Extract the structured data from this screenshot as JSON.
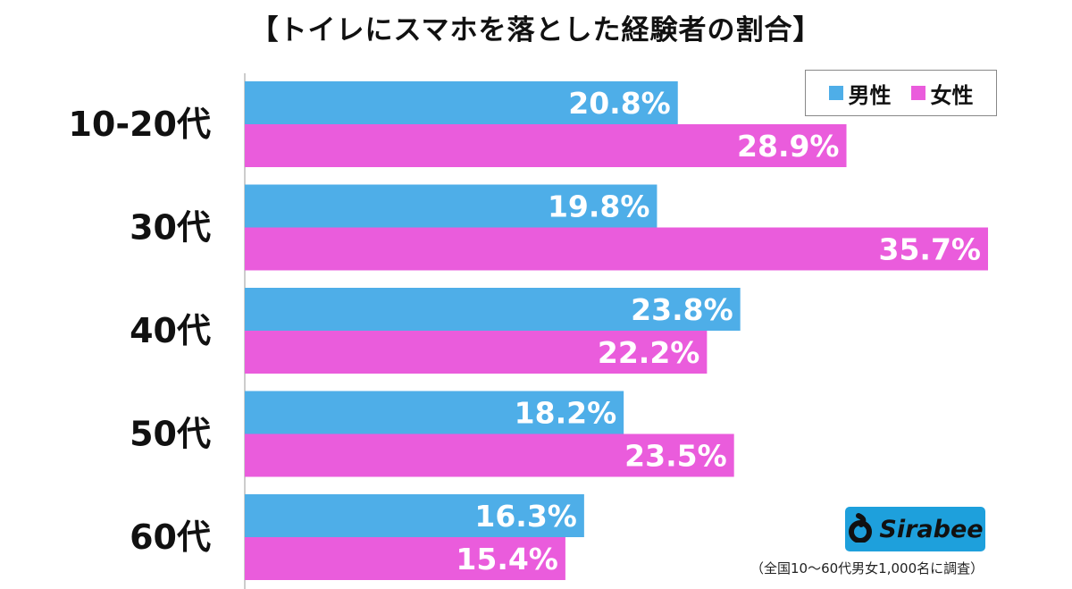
{
  "title": "【トイレにスマホを落とした経験者の割合】",
  "chart_data": {
    "type": "bar",
    "orientation": "horizontal",
    "categories": [
      "10-20代",
      "30代",
      "40代",
      "50代",
      "60代"
    ],
    "series": [
      {
        "name": "男性",
        "color": "#4eaee8",
        "values": [
          20.8,
          19.8,
          23.8,
          18.2,
          16.3
        ]
      },
      {
        "name": "女性",
        "color": "#ea5cdc",
        "values": [
          28.9,
          35.7,
          22.2,
          23.5,
          15.4
        ]
      }
    ],
    "value_suffix": "%",
    "xlim": [
      0,
      35.7
    ],
    "legend_position": "top-right",
    "grid": false
  },
  "logo": {
    "text": "Sirabee",
    "color": "#1ea0dc"
  },
  "footnote": "（全国10〜60代男女1,000名に調査）"
}
